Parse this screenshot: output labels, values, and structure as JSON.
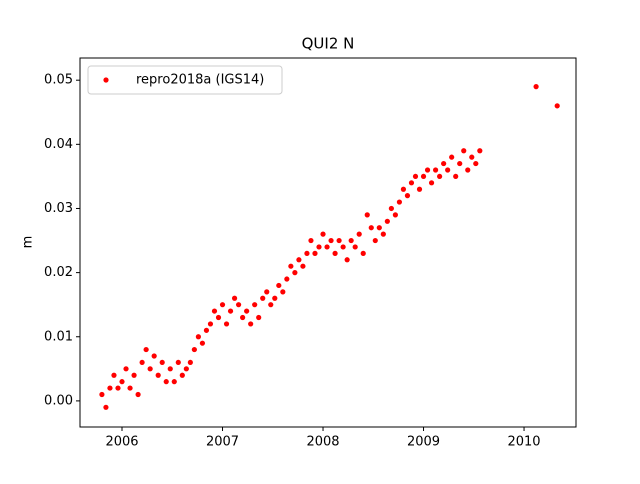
{
  "chart_data": {
    "type": "scatter",
    "title": "QUI2 N",
    "y_label": "m",
    "series": [
      {
        "name": "repro2018a (IGS14)",
        "color": "#ff0000",
        "x": [
          2005.8,
          2005.84,
          2005.88,
          2005.92,
          2005.96,
          2006.0,
          2006.04,
          2006.08,
          2006.12,
          2006.16,
          2006.2,
          2006.24,
          2006.28,
          2006.32,
          2006.36,
          2006.4,
          2006.44,
          2006.48,
          2006.52,
          2006.56,
          2006.6,
          2006.64,
          2006.68,
          2006.72,
          2006.76,
          2006.8,
          2006.84,
          2006.88,
          2006.92,
          2006.96,
          2007.0,
          2007.04,
          2007.08,
          2007.12,
          2007.16,
          2007.2,
          2007.24,
          2007.28,
          2007.32,
          2007.36,
          2007.4,
          2007.44,
          2007.48,
          2007.52,
          2007.56,
          2007.6,
          2007.64,
          2007.68,
          2007.72,
          2007.76,
          2007.8,
          2007.84,
          2007.88,
          2007.92,
          2007.96,
          2008.0,
          2008.04,
          2008.08,
          2008.12,
          2008.16,
          2008.2,
          2008.24,
          2008.28,
          2008.32,
          2008.36,
          2008.4,
          2008.44,
          2008.48,
          2008.52,
          2008.56,
          2008.6,
          2008.64,
          2008.68,
          2008.72,
          2008.76,
          2008.8,
          2008.84,
          2008.88,
          2008.92,
          2008.96,
          2009.0,
          2009.04,
          2009.08,
          2009.12,
          2009.16,
          2009.2,
          2009.24,
          2009.28,
          2009.32,
          2009.36,
          2009.4,
          2009.44,
          2009.48,
          2009.52,
          2009.56,
          2010.12,
          2010.33
        ],
        "values": [
          0.001,
          -0.001,
          0.002,
          0.004,
          0.002,
          0.003,
          0.005,
          0.002,
          0.004,
          0.001,
          0.006,
          0.008,
          0.005,
          0.007,
          0.004,
          0.006,
          0.003,
          0.005,
          0.003,
          0.006,
          0.004,
          0.005,
          0.006,
          0.008,
          0.01,
          0.009,
          0.011,
          0.012,
          0.014,
          0.013,
          0.015,
          0.012,
          0.014,
          0.016,
          0.015,
          0.013,
          0.014,
          0.012,
          0.015,
          0.013,
          0.016,
          0.017,
          0.015,
          0.016,
          0.018,
          0.017,
          0.019,
          0.021,
          0.02,
          0.022,
          0.021,
          0.023,
          0.025,
          0.023,
          0.024,
          0.026,
          0.024,
          0.025,
          0.023,
          0.025,
          0.024,
          0.022,
          0.025,
          0.024,
          0.026,
          0.023,
          0.029,
          0.027,
          0.025,
          0.027,
          0.026,
          0.028,
          0.03,
          0.029,
          0.031,
          0.033,
          0.032,
          0.034,
          0.035,
          0.033,
          0.035,
          0.036,
          0.034,
          0.036,
          0.035,
          0.037,
          0.036,
          0.038,
          0.035,
          0.037,
          0.039,
          0.036,
          0.038,
          0.037,
          0.039,
          0.049,
          0.046
        ]
      }
    ],
    "xlim": [
      2005.582,
      2010.517
    ],
    "xticks": [
      2006,
      2007,
      2008,
      2009,
      2010
    ],
    "ylim": [
      -0.00407,
      0.05346
    ],
    "yticks": [
      {
        "value": 0,
        "label": "0.00"
      },
      0.01,
      0.02,
      0.03,
      0.04,
      0.05
    ],
    "legend": "upper left",
    "grid": false
  }
}
